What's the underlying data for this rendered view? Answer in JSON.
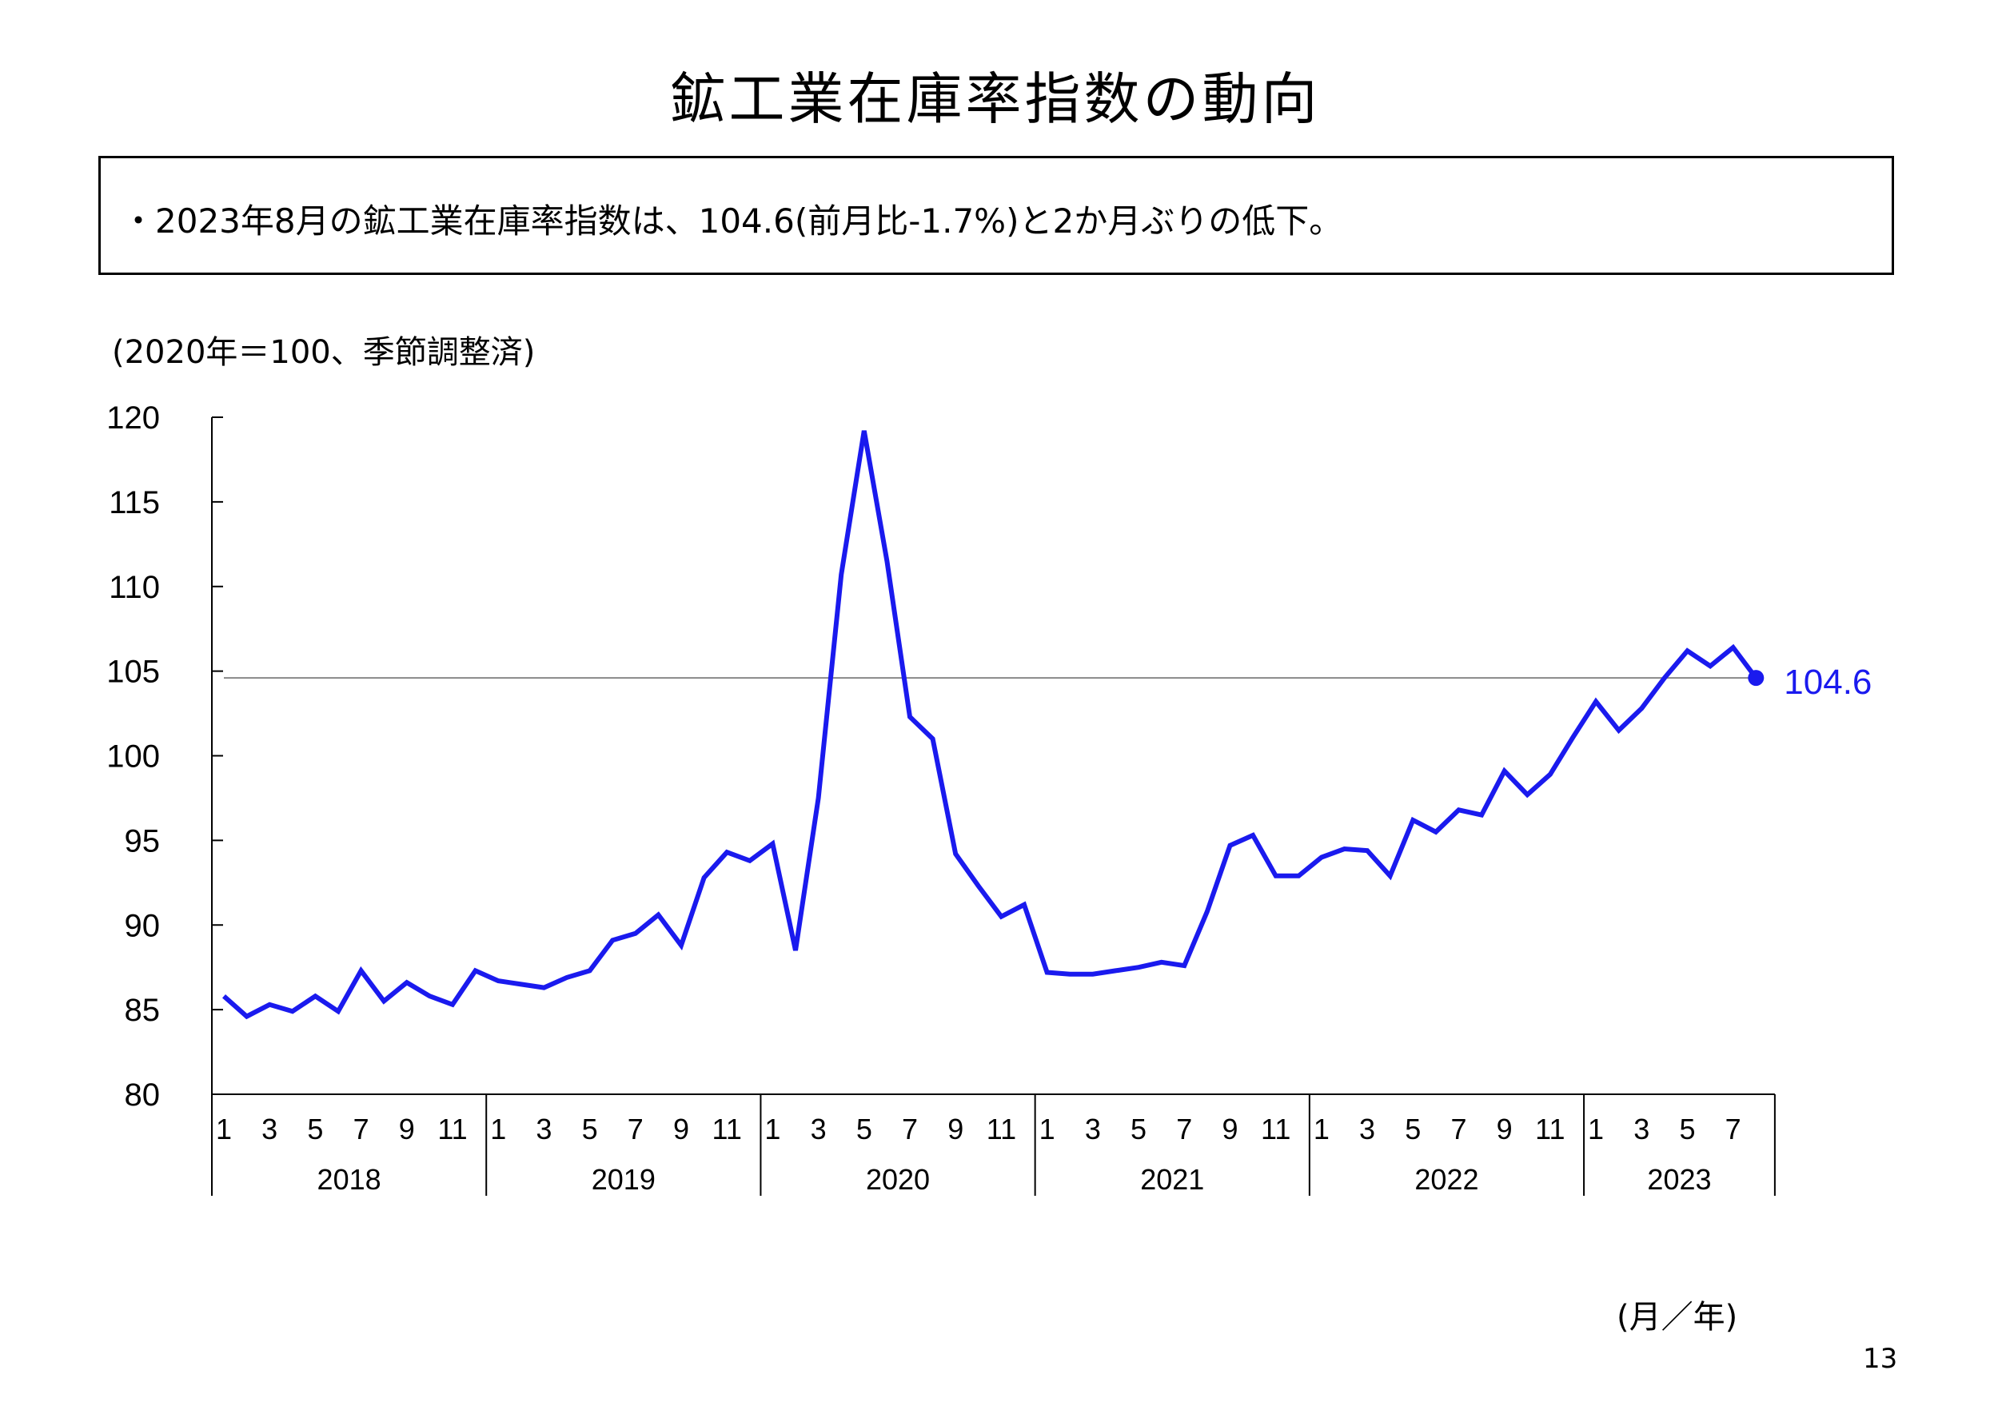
{
  "page": {
    "title": "鉱工業在庫率指数の動向",
    "summary": "・2023年8月の鉱工業在庫率指数は、104.6(前月比-1.7%)と2か月ぶりの低下。",
    "unit_note": "(2020年＝100、季節調整済)",
    "x_axis_unit": "(月／年)",
    "page_number": "13"
  },
  "chart_data": {
    "type": "line",
    "ylim": [
      80,
      120
    ],
    "yticks": [
      80,
      85,
      90,
      95,
      100,
      105,
      110,
      115,
      120
    ],
    "years": [
      "2018",
      "2019",
      "2020",
      "2021",
      "2022",
      "2023"
    ],
    "month_tick_labels": [
      "1",
      "3",
      "5",
      "7",
      "9",
      "11"
    ],
    "reference_line": 104.6,
    "last_value_label": "104.6",
    "line_color": "#1a1aee",
    "reference_line_color": "#888888",
    "series": [
      {
        "values": [
          85.8,
          84.6,
          85.3,
          84.9,
          85.8,
          84.9,
          87.3,
          85.5,
          86.6,
          85.8,
          85.3,
          87.3,
          86.7,
          86.5,
          86.3,
          86.9,
          87.3,
          89.1,
          89.5,
          90.6,
          88.8,
          92.8,
          94.3,
          93.8,
          94.8,
          88.5,
          97.5,
          110.7,
          119.2,
          111.5,
          102.3,
          101.0,
          94.2,
          92.3,
          90.5,
          91.2,
          87.2,
          87.1,
          87.1,
          87.3,
          87.5,
          87.8,
          87.6,
          90.8,
          94.7,
          95.3,
          92.9,
          92.9,
          94.0,
          94.5,
          94.4,
          92.9,
          96.2,
          95.5,
          96.8,
          96.5,
          99.1,
          97.7,
          98.9,
          101.1,
          103.2,
          101.5,
          102.8,
          104.6,
          106.2,
          105.3,
          106.4,
          104.6
        ]
      }
    ]
  }
}
